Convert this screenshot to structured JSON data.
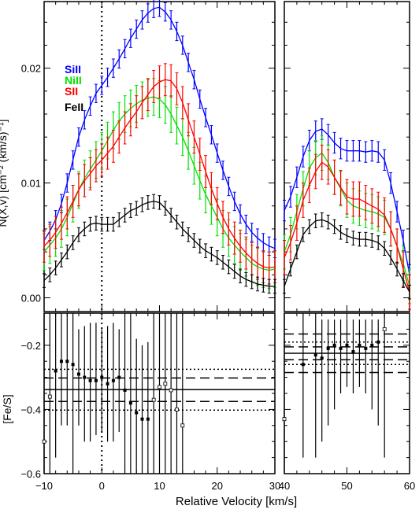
{
  "chart_data": [
    {
      "type": "line",
      "panel": "top-left",
      "xlim": [
        -10,
        30
      ],
      "ylim": [
        -0.0012,
        0.0258
      ],
      "yticks": [
        0.0,
        0.01,
        0.02
      ],
      "ytick_labels": [
        "0.00",
        "0.01",
        "0.02"
      ],
      "ylabel": "N(X,v) [cm⁻² (km/s)⁻¹]",
      "vline": 0,
      "legend": [
        "SiII",
        "NiII",
        "SII",
        "FeII"
      ],
      "series": [
        {
          "name": "SiII",
          "color": "#0000ff",
          "x": [
            -10,
            -9,
            -8,
            -7,
            -6,
            -5,
            -4,
            -3,
            -2,
            -1,
            0,
            1,
            2,
            3,
            4,
            5,
            6,
            7,
            8,
            9,
            10,
            11,
            12,
            13,
            14,
            15,
            16,
            17,
            18,
            19,
            20,
            21,
            22,
            23,
            24,
            25,
            26,
            27,
            28,
            29,
            30
          ],
          "y": [
            0.005,
            0.0058,
            0.0068,
            0.0082,
            0.01,
            0.012,
            0.014,
            0.0155,
            0.0167,
            0.0178,
            0.0185,
            0.0192,
            0.02,
            0.0208,
            0.0217,
            0.0226,
            0.0234,
            0.0242,
            0.0248,
            0.0252,
            0.0253,
            0.0249,
            0.0242,
            0.0232,
            0.022,
            0.0205,
            0.019,
            0.0173,
            0.0157,
            0.0142,
            0.0126,
            0.0111,
            0.0097,
            0.0084,
            0.0073,
            0.0064,
            0.0057,
            0.0052,
            0.0048,
            0.0045,
            0.0043
          ],
          "err": 0.0008
        },
        {
          "name": "NiII",
          "color": "#00e000",
          "x": [
            -10,
            -9,
            -8,
            -7,
            -6,
            -5,
            -4,
            -3,
            -2,
            -1,
            0,
            1,
            2,
            3,
            4,
            5,
            6,
            7,
            8,
            9,
            10,
            11,
            12,
            13,
            14,
            15,
            16,
            17,
            18,
            19,
            20,
            21,
            22,
            23,
            24,
            25,
            26,
            27,
            28,
            29,
            30
          ],
          "y": [
            0.004,
            0.0046,
            0.0052,
            0.006,
            0.007,
            0.0082,
            0.0094,
            0.0104,
            0.0112,
            0.012,
            0.0128,
            0.0137,
            0.0146,
            0.0154,
            0.016,
            0.0165,
            0.0169,
            0.0172,
            0.0174,
            0.0175,
            0.0173,
            0.0168,
            0.016,
            0.015,
            0.014,
            0.0128,
            0.0115,
            0.0102,
            0.009,
            0.008,
            0.007,
            0.006,
            0.0052,
            0.0046,
            0.004,
            0.0035,
            0.003,
            0.0027,
            0.0025,
            0.0024,
            0.0025
          ],
          "err": 0.0016
        },
        {
          "name": "SII",
          "color": "#ff0000",
          "x": [
            -10,
            -9,
            -8,
            -7,
            -6,
            -5,
            -4,
            -3,
            -2,
            -1,
            0,
            1,
            2,
            3,
            4,
            5,
            6,
            7,
            8,
            9,
            10,
            11,
            12,
            13,
            14,
            15,
            16,
            17,
            18,
            19,
            20,
            21,
            22,
            23,
            24,
            25,
            26,
            27,
            28,
            29,
            30
          ],
          "y": [
            0.0045,
            0.005,
            0.0057,
            0.0065,
            0.0074,
            0.0084,
            0.0094,
            0.0102,
            0.0108,
            0.0115,
            0.012,
            0.0126,
            0.0132,
            0.014,
            0.0148,
            0.0155,
            0.0162,
            0.017,
            0.0177,
            0.0184,
            0.0188,
            0.019,
            0.0189,
            0.0182,
            0.017,
            0.0155,
            0.014,
            0.0125,
            0.011,
            0.0095,
            0.0082,
            0.007,
            0.006,
            0.0052,
            0.0045,
            0.0039,
            0.0034,
            0.003,
            0.0027,
            0.0026,
            0.0027
          ],
          "err": 0.0014
        },
        {
          "name": "FeII",
          "color": "#000000",
          "x": [
            -10,
            -9,
            -8,
            -7,
            -6,
            -5,
            -4,
            -3,
            -2,
            -1,
            0,
            1,
            2,
            3,
            4,
            5,
            6,
            7,
            8,
            9,
            10,
            11,
            12,
            13,
            14,
            15,
            16,
            17,
            18,
            19,
            20,
            21,
            22,
            23,
            24,
            25,
            26,
            27,
            28,
            29,
            30
          ],
          "y": [
            0.0015,
            0.002,
            0.0026,
            0.0033,
            0.004,
            0.0048,
            0.0055,
            0.006,
            0.0064,
            0.0065,
            0.0064,
            0.0064,
            0.0064,
            0.0068,
            0.0072,
            0.0076,
            0.0078,
            0.0081,
            0.0083,
            0.0084,
            0.0083,
            0.0078,
            0.0072,
            0.0066,
            0.006,
            0.0055,
            0.005,
            0.0045,
            0.0041,
            0.0038,
            0.0035,
            0.0031,
            0.0027,
            0.0023,
            0.0019,
            0.0016,
            0.0014,
            0.0012,
            0.0011,
            0.001,
            0.001
          ],
          "err": 0.0006
        }
      ]
    },
    {
      "type": "line",
      "panel": "top-right",
      "xlim": [
        40,
        60
      ],
      "ylim": [
        -0.0012,
        0.0258
      ],
      "series": [
        {
          "name": "SiII",
          "color": "#0000ff",
          "x": [
            40,
            41,
            42,
            43,
            44,
            45,
            46,
            47,
            48,
            49,
            50,
            51,
            52,
            53,
            54,
            55,
            56,
            57,
            58,
            59,
            60
          ],
          "y": [
            0.0076,
            0.0088,
            0.0105,
            0.0123,
            0.0137,
            0.0145,
            0.0147,
            0.0142,
            0.0135,
            0.013,
            0.0128,
            0.0128,
            0.0128,
            0.0127,
            0.0128,
            0.0127,
            0.012,
            0.01,
            0.0075,
            0.005,
            0.002
          ],
          "err": 0.0009
        },
        {
          "name": "NiII",
          "color": "#00e000",
          "x": [
            40,
            41,
            42,
            43,
            44,
            45,
            46,
            47,
            48,
            49,
            50,
            51,
            52,
            53,
            54,
            55,
            56,
            57,
            58,
            59,
            60
          ],
          "y": [
            0.004,
            0.0055,
            0.0075,
            0.0095,
            0.0113,
            0.0122,
            0.0126,
            0.0118,
            0.0105,
            0.0095,
            0.0085,
            0.008,
            0.0078,
            0.0076,
            0.0075,
            0.0073,
            0.007,
            0.006,
            0.0045,
            0.003,
            0.001
          ],
          "err": 0.0015
        },
        {
          "name": "SII",
          "color": "#ff0000",
          "x": [
            40,
            41,
            42,
            43,
            44,
            45,
            46,
            47,
            48,
            49,
            50,
            51,
            52,
            53,
            54,
            55,
            56,
            57,
            58,
            59,
            60
          ],
          "y": [
            0.0035,
            0.0048,
            0.0065,
            0.0085,
            0.0098,
            0.011,
            0.0118,
            0.0114,
            0.0105,
            0.0096,
            0.0088,
            0.0086,
            0.0086,
            0.0083,
            0.008,
            0.0077,
            0.0072,
            0.006,
            0.0045,
            0.0025,
            0.0005
          ],
          "err": 0.0015
        },
        {
          "name": "FeII",
          "color": "#000000",
          "x": [
            40,
            41,
            42,
            43,
            44,
            45,
            46,
            47,
            48,
            49,
            50,
            51,
            52,
            53,
            54,
            55,
            56,
            57,
            58,
            59,
            60
          ],
          "y": [
            0.001,
            0.0025,
            0.004,
            0.0055,
            0.0062,
            0.0067,
            0.0068,
            0.0066,
            0.0062,
            0.0057,
            0.0054,
            0.0052,
            0.0051,
            0.0051,
            0.005,
            0.0048,
            0.0043,
            0.0035,
            0.0025,
            0.0015,
            0.0005
          ],
          "err": 0.0006
        }
      ]
    },
    {
      "type": "scatter",
      "panel": "bottom-left",
      "xlim": [
        -10,
        30
      ],
      "ylim": [
        -0.6,
        -0.1
      ],
      "yticks": [
        -0.2,
        -0.4,
        -0.6
      ],
      "ytick_labels": [
        "−0.2",
        "−0.4",
        "−0.6"
      ],
      "xticks": [
        -10,
        0,
        10,
        20,
        30
      ],
      "xtick_labels": [
        "−10",
        "0",
        "10",
        "20",
        "30"
      ],
      "ylabel": "[Fe/S]",
      "vline": 0,
      "hlines": {
        "mean": -0.338,
        "dashed": [
          -0.302,
          -0.375
        ],
        "dotted": [
          -0.275,
          -0.402
        ]
      },
      "points": [
        {
          "x": -10,
          "y": -0.5,
          "lo": -0.6,
          "hi": -0.1,
          "open": true
        },
        {
          "x": -9,
          "y": -0.36,
          "lo": -0.6,
          "hi": -0.1,
          "open": true
        },
        {
          "x": -8,
          "y": -0.28,
          "lo": -0.55,
          "hi": -0.1,
          "open": false
        },
        {
          "x": -7,
          "y": -0.25,
          "lo": -0.45,
          "hi": -0.1,
          "open": false
        },
        {
          "x": -6,
          "y": -0.25,
          "lo": -0.45,
          "hi": -0.1,
          "open": false
        },
        {
          "x": -5,
          "y": -0.26,
          "lo": -0.6,
          "hi": -0.1,
          "open": false
        },
        {
          "x": -4,
          "y": -0.29,
          "lo": -0.45,
          "hi": -0.15,
          "open": false
        },
        {
          "x": -3,
          "y": -0.3,
          "lo": -0.5,
          "hi": -0.14,
          "open": false
        },
        {
          "x": -2,
          "y": -0.31,
          "lo": -0.5,
          "hi": -0.13,
          "open": false
        },
        {
          "x": -1,
          "y": -0.31,
          "lo": -0.48,
          "hi": -0.13,
          "open": false
        },
        {
          "x": 0,
          "y": -0.3,
          "lo": -0.47,
          "hi": -0.15,
          "open": false
        },
        {
          "x": 1,
          "y": -0.32,
          "lo": -0.5,
          "hi": -0.14,
          "open": false
        },
        {
          "x": 2,
          "y": -0.31,
          "lo": -0.5,
          "hi": -0.13,
          "open": false
        },
        {
          "x": 3,
          "y": -0.3,
          "lo": -0.47,
          "hi": -0.15,
          "open": false
        },
        {
          "x": 4,
          "y": -0.34,
          "lo": -0.6,
          "hi": -0.1,
          "open": false
        },
        {
          "x": 5,
          "y": -0.38,
          "lo": -0.6,
          "hi": -0.1,
          "open": false
        },
        {
          "x": 6,
          "y": -0.41,
          "lo": -0.6,
          "hi": -0.18,
          "open": false
        },
        {
          "x": 7,
          "y": -0.43,
          "lo": -0.6,
          "hi": -0.2,
          "open": false
        },
        {
          "x": 8,
          "y": -0.43,
          "lo": -0.6,
          "hi": -0.19,
          "open": false
        },
        {
          "x": 9,
          "y": -0.37,
          "lo": -0.6,
          "hi": -0.1,
          "open": true
        },
        {
          "x": 10,
          "y": -0.33,
          "lo": -0.6,
          "hi": -0.1,
          "open": true
        },
        {
          "x": 11,
          "y": -0.32,
          "lo": -0.6,
          "hi": -0.1,
          "open": true
        },
        {
          "x": 12,
          "y": -0.34,
          "lo": -0.6,
          "hi": -0.1,
          "open": true
        },
        {
          "x": 13,
          "y": -0.4,
          "lo": -0.6,
          "hi": -0.1,
          "open": true
        },
        {
          "x": 14,
          "y": -0.45,
          "lo": -0.6,
          "hi": -0.1,
          "open": true
        }
      ]
    },
    {
      "type": "scatter",
      "panel": "bottom-right",
      "xlim": [
        40,
        60
      ],
      "ylim": [
        -0.6,
        -0.1
      ],
      "xticks": [
        40,
        50,
        60
      ],
      "xtick_labels": [
        "40",
        "50",
        "60"
      ],
      "hlines": {
        "mean": -0.225,
        "dashed": [
          -0.205,
          -0.245,
          -0.165,
          -0.285
        ],
        "dotted": [
          -0.19,
          -0.26
        ]
      },
      "points": [
        {
          "x": 40,
          "y": -0.43,
          "lo": -0.6,
          "hi": -0.1,
          "open": true
        },
        {
          "x": 43,
          "y": -0.26,
          "lo": -0.55,
          "hi": -0.1,
          "open": false
        },
        {
          "x": 45,
          "y": -0.23,
          "lo": -0.55,
          "hi": -0.1,
          "open": false
        },
        {
          "x": 46,
          "y": -0.24,
          "lo": -0.5,
          "hi": -0.12,
          "open": false
        },
        {
          "x": 47,
          "y": -0.21,
          "lo": -0.45,
          "hi": -0.12,
          "open": false
        },
        {
          "x": 48,
          "y": -0.2,
          "lo": -0.4,
          "hi": -0.12,
          "open": false
        },
        {
          "x": 49,
          "y": -0.21,
          "lo": -0.35,
          "hi": -0.12,
          "open": false
        },
        {
          "x": 50,
          "y": -0.2,
          "lo": -0.33,
          "hi": -0.12,
          "open": false
        },
        {
          "x": 51,
          "y": -0.22,
          "lo": -0.35,
          "hi": -0.12,
          "open": false
        },
        {
          "x": 52,
          "y": -0.2,
          "lo": -0.33,
          "hi": -0.12,
          "open": false
        },
        {
          "x": 53,
          "y": -0.21,
          "lo": -0.35,
          "hi": -0.12,
          "open": false
        },
        {
          "x": 54,
          "y": -0.2,
          "lo": -0.4,
          "hi": -0.12,
          "open": false
        },
        {
          "x": 55,
          "y": -0.19,
          "lo": -0.45,
          "hi": -0.12,
          "open": false
        },
        {
          "x": 56,
          "y": -0.15,
          "lo": -0.55,
          "hi": -0.1,
          "open": true
        }
      ]
    }
  ],
  "xlabel": "Relative Velocity [km/s]"
}
